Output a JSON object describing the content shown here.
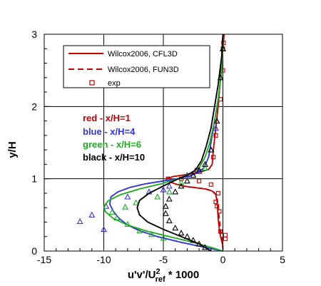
{
  "chart_data": {
    "type": "line",
    "title": "",
    "xlabel": "u'v'/U",
    "xlabel_sub": "ref",
    "xlabel_sup": "2",
    "xlabel_tail": " * 1000",
    "ylabel": "y/H",
    "xlim": [
      -15,
      5
    ],
    "ylim": [
      0,
      3
    ],
    "xticks": [
      -15,
      -10,
      -5,
      0,
      5
    ],
    "yticks": [
      0,
      1,
      2,
      3
    ],
    "xtick_labels": [
      "-15",
      "-10",
      "-5",
      "0",
      "5"
    ],
    "ytick_labels": [
      "0",
      "1",
      "2",
      "3"
    ],
    "grid": true,
    "legend": {
      "placement": "top-left",
      "entries": [
        {
          "label": "Wilcox2006, CFL3D",
          "style": "solid-line",
          "color": "#c00000"
        },
        {
          "label": "Wilcox2006, FUN3D",
          "style": "dashed-line",
          "color": "#c00000"
        },
        {
          "label": "exp",
          "style": "square-marker",
          "color": "#c00000"
        }
      ]
    },
    "annotations": [
      {
        "text": "red - x/H=1",
        "color": "#c00000"
      },
      {
        "text": "blue - x/H=4",
        "color": "#3333dd"
      },
      {
        "text": "green - x/H=6",
        "color": "#22aa22"
      },
      {
        "text": "black - x/H=10",
        "color": "#000000"
      }
    ],
    "series": [
      {
        "name": "red - x/H=1",
        "color": "#c00000",
        "cfl3d": [
          [
            0,
            0.02
          ],
          [
            -0.05,
            0.1
          ],
          [
            -0.2,
            0.2
          ],
          [
            -0.3,
            0.3
          ],
          [
            -0.4,
            0.45
          ],
          [
            -0.45,
            0.6
          ],
          [
            -0.5,
            0.7
          ],
          [
            -0.6,
            0.78
          ],
          [
            -0.9,
            0.83
          ],
          [
            -1.5,
            0.86
          ],
          [
            -2.5,
            0.88
          ],
          [
            -3.4,
            0.9
          ],
          [
            -4,
            0.93
          ],
          [
            -4.5,
            0.96
          ],
          [
            -4.8,
            1.0
          ],
          [
            -4.2,
            1.03
          ],
          [
            -3,
            1.06
          ],
          [
            -2,
            1.09
          ],
          [
            -1.2,
            1.13
          ],
          [
            -0.9,
            1.2
          ],
          [
            -0.8,
            1.4
          ],
          [
            -0.6,
            1.7
          ],
          [
            -0.4,
            2.0
          ],
          [
            -0.2,
            2.4
          ],
          [
            0,
            2.8
          ],
          [
            0.1,
            3.0
          ]
        ],
        "fun3d": [
          [
            0,
            0.02
          ],
          [
            0,
            0.1
          ],
          [
            -0.1,
            0.2
          ],
          [
            -0.2,
            0.3
          ],
          [
            -0.3,
            0.45
          ],
          [
            -0.4,
            0.6
          ],
          [
            -0.45,
            0.7
          ],
          [
            -0.55,
            0.78
          ],
          [
            -0.85,
            0.83
          ],
          [
            -1.4,
            0.86
          ],
          [
            -2.4,
            0.88
          ],
          [
            -3.3,
            0.9
          ],
          [
            -4,
            0.93
          ],
          [
            -4.5,
            0.96
          ],
          [
            -4.8,
            1.0
          ],
          [
            -4.2,
            1.03
          ],
          [
            -3,
            1.06
          ],
          [
            -2,
            1.09
          ],
          [
            -1.2,
            1.13
          ],
          [
            -0.9,
            1.2
          ],
          [
            -0.8,
            1.4
          ],
          [
            -0.6,
            1.7
          ],
          [
            -0.4,
            2.0
          ],
          [
            -0.2,
            2.4
          ],
          [
            0,
            2.8
          ],
          [
            0.1,
            3.0
          ]
        ],
        "exp": [
          [
            -0.3,
            0.55
          ],
          [
            -0.5,
            0.62
          ],
          [
            -0.6,
            0.68
          ],
          [
            -0.4,
            0.8
          ],
          [
            -0.2,
            0.27
          ],
          [
            0.2,
            0.17
          ],
          [
            0.2,
            0.22
          ],
          [
            -1,
            0.92
          ],
          [
            -2,
            0.97
          ],
          [
            -3.5,
            1.0
          ],
          [
            -4.6,
            1.0
          ],
          [
            -2.2,
            1.12
          ],
          [
            -0.8,
            1.3
          ],
          [
            -0.6,
            1.6
          ],
          [
            -0.2,
            2.1
          ],
          [
            0,
            2.5
          ],
          [
            0,
            2.8
          ],
          [
            0.05,
            2.88
          ]
        ]
      },
      {
        "name": "blue - x/H=4",
        "color": "#3333dd",
        "cfl3d": [
          [
            0,
            0.0
          ],
          [
            -1.5,
            0.05
          ],
          [
            -3.5,
            0.12
          ],
          [
            -5.5,
            0.2
          ],
          [
            -7,
            0.28
          ],
          [
            -8,
            0.36
          ],
          [
            -8.7,
            0.45
          ],
          [
            -9.2,
            0.55
          ],
          [
            -9.5,
            0.65
          ],
          [
            -9.4,
            0.75
          ],
          [
            -8.8,
            0.82
          ],
          [
            -7.8,
            0.88
          ],
          [
            -6.5,
            0.93
          ],
          [
            -5,
            0.97
          ],
          [
            -3.5,
            1.01
          ],
          [
            -2.4,
            1.06
          ],
          [
            -1.6,
            1.15
          ],
          [
            -1.2,
            1.3
          ],
          [
            -1,
            1.5
          ],
          [
            -0.7,
            1.8
          ],
          [
            -0.4,
            2.1
          ],
          [
            -0.1,
            2.5
          ],
          [
            0,
            3.0
          ]
        ],
        "fun3d": [
          [
            0,
            0.0
          ],
          [
            -1.5,
            0.05
          ],
          [
            -3.5,
            0.12
          ],
          [
            -5.5,
            0.2
          ],
          [
            -7,
            0.28
          ],
          [
            -8,
            0.36
          ],
          [
            -8.7,
            0.45
          ],
          [
            -9.2,
            0.55
          ],
          [
            -9.5,
            0.65
          ],
          [
            -9.4,
            0.75
          ],
          [
            -8.8,
            0.82
          ],
          [
            -7.8,
            0.88
          ],
          [
            -6.5,
            0.93
          ],
          [
            -5,
            0.97
          ],
          [
            -3.5,
            1.01
          ],
          [
            -2.4,
            1.06
          ],
          [
            -1.6,
            1.15
          ],
          [
            -1.2,
            1.3
          ],
          [
            -1,
            1.5
          ],
          [
            -0.7,
            1.8
          ],
          [
            -0.4,
            2.1
          ],
          [
            -0.1,
            2.5
          ],
          [
            0,
            3.0
          ]
        ],
        "exp": [
          [
            -12,
            0.41
          ],
          [
            -11,
            0.5
          ],
          [
            -10,
            0.3
          ],
          [
            -9.8,
            0.62
          ],
          [
            -8,
            0.75
          ],
          [
            -6.2,
            0.82
          ],
          [
            -5,
            0.85
          ],
          [
            -4.5,
            0.9
          ],
          [
            -3,
            1.05
          ],
          [
            -2,
            1.1
          ],
          [
            -1,
            1.4
          ],
          [
            -0.6,
            1.7
          ]
        ]
      },
      {
        "name": "green - x/H=6",
        "color": "#22aa22",
        "cfl3d": [
          [
            0,
            0.0
          ],
          [
            -1,
            0.05
          ],
          [
            -2.5,
            0.12
          ],
          [
            -4.5,
            0.2
          ],
          [
            -6.5,
            0.28
          ],
          [
            -8,
            0.36
          ],
          [
            -9.2,
            0.45
          ],
          [
            -9.9,
            0.55
          ],
          [
            -10,
            0.62
          ],
          [
            -9.6,
            0.7
          ],
          [
            -8.6,
            0.78
          ],
          [
            -7,
            0.86
          ],
          [
            -5.2,
            0.93
          ],
          [
            -3.8,
            1.0
          ],
          [
            -2.8,
            1.07
          ],
          [
            -2,
            1.15
          ],
          [
            -1.5,
            1.3
          ],
          [
            -1.1,
            1.5
          ],
          [
            -0.7,
            1.8
          ],
          [
            -0.4,
            2.1
          ],
          [
            -0.1,
            2.5
          ],
          [
            0,
            3.0
          ]
        ],
        "fun3d": [
          [
            0,
            0.0
          ],
          [
            -1,
            0.05
          ],
          [
            -2.5,
            0.12
          ],
          [
            -4.5,
            0.2
          ],
          [
            -6.5,
            0.28
          ],
          [
            -8,
            0.36
          ],
          [
            -9.2,
            0.45
          ],
          [
            -9.9,
            0.55
          ],
          [
            -10,
            0.62
          ],
          [
            -9.6,
            0.7
          ],
          [
            -8.6,
            0.78
          ],
          [
            -7,
            0.86
          ],
          [
            -5.2,
            0.93
          ],
          [
            -3.8,
            1.0
          ],
          [
            -2.8,
            1.07
          ],
          [
            -2,
            1.15
          ],
          [
            -1.5,
            1.3
          ],
          [
            -1.1,
            1.5
          ],
          [
            -0.7,
            1.8
          ],
          [
            -0.4,
            2.1
          ],
          [
            -0.1,
            2.5
          ],
          [
            0,
            3.0
          ]
        ],
        "exp": [
          [
            -5,
            0.18
          ],
          [
            -6,
            0.23
          ],
          [
            -7,
            0.28
          ],
          [
            -8,
            0.37
          ],
          [
            -8.9,
            0.46
          ],
          [
            -9.3,
            0.54
          ],
          [
            -8.2,
            0.61
          ],
          [
            -7.3,
            0.67
          ],
          [
            -5.5,
            0.75
          ],
          [
            -4.5,
            0.82
          ],
          [
            -3.5,
            0.95
          ],
          [
            -2.5,
            1.05
          ],
          [
            -1.5,
            1.15
          ],
          [
            -1,
            1.4
          ],
          [
            -0.5,
            1.8
          ],
          [
            -0.2,
            2.4
          ],
          [
            0,
            2.8
          ]
        ]
      },
      {
        "name": "black - x/H=10",
        "color": "#000000",
        "cfl3d": [
          [
            -1,
            0.0
          ],
          [
            -2,
            0.1
          ],
          [
            -3.5,
            0.2
          ],
          [
            -5,
            0.3
          ],
          [
            -6.3,
            0.4
          ],
          [
            -7,
            0.5
          ],
          [
            -7.2,
            0.6
          ],
          [
            -7,
            0.7
          ],
          [
            -6.2,
            0.8
          ],
          [
            -5,
            0.9
          ],
          [
            -4,
            0.98
          ],
          [
            -3,
            1.05
          ],
          [
            -2.3,
            1.12
          ],
          [
            -1.8,
            1.25
          ],
          [
            -1.4,
            1.45
          ],
          [
            -1,
            1.7
          ],
          [
            -0.7,
            2.0
          ],
          [
            -0.4,
            2.3
          ],
          [
            -0.1,
            2.7
          ],
          [
            0,
            3.0
          ]
        ],
        "fun3d": [
          [
            -1,
            0.0
          ],
          [
            -2,
            0.1
          ],
          [
            -3.5,
            0.2
          ],
          [
            -5,
            0.3
          ],
          [
            -6.3,
            0.4
          ],
          [
            -7,
            0.5
          ],
          [
            -7.2,
            0.6
          ],
          [
            -7,
            0.7
          ],
          [
            -6.2,
            0.8
          ],
          [
            -5,
            0.9
          ],
          [
            -4,
            0.98
          ],
          [
            -3,
            1.05
          ],
          [
            -2.3,
            1.12
          ],
          [
            -1.8,
            1.25
          ],
          [
            -1.4,
            1.45
          ],
          [
            -1,
            1.7
          ],
          [
            -0.7,
            2.0
          ],
          [
            -0.4,
            2.3
          ],
          [
            -0.1,
            2.7
          ],
          [
            0,
            3.0
          ]
        ],
        "exp": [
          [
            -1.5,
            0.05
          ],
          [
            -2,
            0.1
          ],
          [
            -2.5,
            0.15
          ],
          [
            -3,
            0.2
          ],
          [
            -3.5,
            0.25
          ],
          [
            -4,
            0.32
          ],
          [
            -4.5,
            0.42
          ],
          [
            -4.8,
            0.52
          ],
          [
            -4.8,
            0.62
          ],
          [
            -4.5,
            0.72
          ],
          [
            -4,
            0.82
          ],
          [
            -3.5,
            0.9
          ],
          [
            -3,
            0.97
          ],
          [
            -2.5,
            1.05
          ],
          [
            -2,
            1.12
          ],
          [
            -1.5,
            1.2
          ],
          [
            -1,
            1.4
          ],
          [
            -0.5,
            1.8
          ],
          [
            -0.2,
            2.4
          ],
          [
            0,
            2.8
          ]
        ]
      }
    ]
  }
}
